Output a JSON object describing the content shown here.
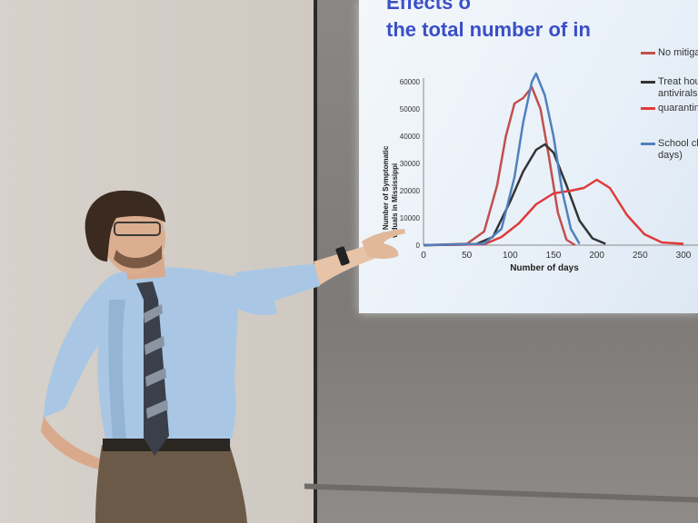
{
  "slide": {
    "title_line1": "Effects o",
    "title_line2": "the total number of in",
    "legend": [
      {
        "line1": "No mitiga",
        "line2": "",
        "color": "#c0504d"
      },
      {
        "line1": "Treat hou",
        "line2": "antivirals",
        "color": "#333333"
      },
      {
        "line1": "quarantin",
        "line2": "",
        "color": "#e03a3a"
      },
      {
        "line1": "School clo",
        "line2": "days)",
        "color": "#4f81bd"
      }
    ]
  },
  "chart_data": {
    "type": "line",
    "xlabel": "Number of days",
    "ylabel_line1": "al Number of Symptomatic",
    "ylabel_line2": "viduals in Mississippi",
    "xlim": [
      0,
      300
    ],
    "ylim": [
      0,
      60000
    ],
    "x_ticks": [
      "0",
      "50",
      "100",
      "150",
      "200",
      "250",
      "300"
    ],
    "y_ticks": [
      "0",
      "10000",
      "20000",
      "30000",
      "40000",
      "50000",
      "60000"
    ],
    "series": [
      {
        "name": "No mitiga",
        "color": "#c0504d",
        "x": [
          0,
          50,
          70,
          85,
          95,
          105,
          115,
          125,
          135,
          145,
          155,
          165,
          175
        ],
        "y": [
          0,
          500,
          5000,
          22000,
          40000,
          52000,
          54000,
          58000,
          50000,
          32000,
          12000,
          2000,
          0
        ]
      },
      {
        "name": "Treat hou antivirals",
        "color": "#333333",
        "x": [
          0,
          60,
          80,
          100,
          115,
          130,
          140,
          150,
          165,
          180,
          195,
          210
        ],
        "y": [
          0,
          300,
          3000,
          16000,
          27000,
          35000,
          37000,
          34000,
          22000,
          9000,
          2500,
          500
        ]
      },
      {
        "name": "quarantin",
        "color": "#e03a3a",
        "x": [
          0,
          70,
          90,
          110,
          130,
          150,
          170,
          185,
          200,
          215,
          235,
          255,
          275,
          300
        ],
        "y": [
          0,
          300,
          3000,
          8000,
          15000,
          19000,
          20000,
          21000,
          24000,
          21000,
          11000,
          4000,
          1000,
          500
        ]
      },
      {
        "name": "School clo days)",
        "color": "#4f81bd",
        "x": [
          0,
          70,
          90,
          105,
          115,
          125,
          130,
          140,
          150,
          160,
          170,
          180
        ],
        "y": [
          0,
          500,
          6000,
          25000,
          45000,
          60000,
          63000,
          55000,
          40000,
          20000,
          6000,
          500
        ]
      }
    ]
  }
}
